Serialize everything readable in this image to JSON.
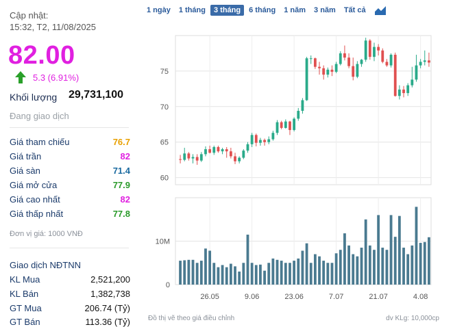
{
  "summary": {
    "updated_label": "Cập nhật:",
    "updated_time": "15:32, T2, 11/08/2025",
    "price": "82.00",
    "change": "5.3 (6.91%)",
    "volume_label": "Khối lượng",
    "volume_value": "29,731,100",
    "status": "Đang giao dịch"
  },
  "price_stats": [
    {
      "label": "Giá tham chiếu",
      "value": "76.7",
      "color": "#e8a000"
    },
    {
      "label": "Giá trần",
      "value": "82",
      "color": "#e020e0"
    },
    {
      "label": "Giá sàn",
      "value": "71.4",
      "color": "#1a6aa0"
    },
    {
      "label": "Giá mở cửa",
      "value": "77.9",
      "color": "#2a9a2a"
    },
    {
      "label": "Giá cao nhất",
      "value": "82",
      "color": "#e020e0"
    },
    {
      "label": "Giá thấp nhất",
      "value": "77.8",
      "color": "#2a9a2a"
    }
  ],
  "unit_note": "Đơn vị giá: 1000 VNĐ",
  "foreign": {
    "title": "Giao dịch NĐTNN",
    "rows": [
      {
        "label": "KL Mua",
        "value": "2,521,200"
      },
      {
        "label": "KL Bán",
        "value": "1,382,738"
      },
      {
        "label": "GT Mua",
        "value": "206.74 (Tỷ)"
      },
      {
        "label": "GT Bán",
        "value": "113.36 (Tỷ)"
      }
    ]
  },
  "tabs": [
    {
      "label": "1 ngày",
      "active": false
    },
    {
      "label": "1 tháng",
      "active": false
    },
    {
      "label": "3 tháng",
      "active": true
    },
    {
      "label": "6 tháng",
      "active": false
    },
    {
      "label": "1 năm",
      "active": false
    },
    {
      "label": "3 năm",
      "active": false
    },
    {
      "label": "Tất cả",
      "active": false
    }
  ],
  "footnotes": {
    "left": "Đồ thị vẽ theo giá điều chỉnh",
    "right": "dv KLg: 10,000cp"
  },
  "colors": {
    "up": "#2aaa8a",
    "down": "#e05050",
    "volume": "#4a7a90"
  },
  "chart_data": {
    "type": "candlestick",
    "price_axis": {
      "ticks": [
        60,
        65,
        70,
        75
      ],
      "range": [
        59,
        80
      ]
    },
    "volume_axis": {
      "tick_labels": [
        "0",
        "10M"
      ],
      "ticks": [
        0,
        10000000
      ],
      "range": [
        0,
        20000000
      ]
    },
    "x_tick_labels": [
      "26.05",
      "9.06",
      "23.06",
      "7.07",
      "21.07",
      "4.08"
    ],
    "x_tick_index": [
      7,
      17,
      27,
      37,
      47,
      57
    ],
    "candles": [
      {
        "o": 62.6,
        "h": 63.2,
        "l": 62.0,
        "c": 62.5,
        "v": 5.5
      },
      {
        "o": 62.5,
        "h": 64.2,
        "l": 62.3,
        "c": 63.4,
        "v": 5.6
      },
      {
        "o": 63.4,
        "h": 63.6,
        "l": 62.4,
        "c": 62.7,
        "v": 5.7
      },
      {
        "o": 62.7,
        "h": 63.3,
        "l": 62.0,
        "c": 62.9,
        "v": 5.7
      },
      {
        "o": 62.9,
        "h": 63.3,
        "l": 61.8,
        "c": 62.4,
        "v": 5.0
      },
      {
        "o": 62.4,
        "h": 63.6,
        "l": 62.2,
        "c": 63.3,
        "v": 5.5
      },
      {
        "o": 63.3,
        "h": 64.4,
        "l": 63.0,
        "c": 64.0,
        "v": 8.3
      },
      {
        "o": 64.0,
        "h": 64.5,
        "l": 63.4,
        "c": 63.5,
        "v": 7.8
      },
      {
        "o": 63.5,
        "h": 64.5,
        "l": 63.2,
        "c": 64.3,
        "v": 5.0
      },
      {
        "o": 64.3,
        "h": 64.5,
        "l": 63.5,
        "c": 63.7,
        "v": 4.0
      },
      {
        "o": 63.7,
        "h": 64.2,
        "l": 63.3,
        "c": 64.0,
        "v": 4.5
      },
      {
        "o": 64.0,
        "h": 64.3,
        "l": 62.8,
        "c": 63.7,
        "v": 4.0
      },
      {
        "o": 63.7,
        "h": 64.2,
        "l": 62.7,
        "c": 63.0,
        "v": 4.8
      },
      {
        "o": 63.0,
        "h": 63.5,
        "l": 61.9,
        "c": 62.3,
        "v": 4.2
      },
      {
        "o": 62.3,
        "h": 63.0,
        "l": 62.0,
        "c": 62.8,
        "v": 3.0
      },
      {
        "o": 62.8,
        "h": 64.0,
        "l": 62.6,
        "c": 63.8,
        "v": 5.0
      },
      {
        "o": 63.8,
        "h": 65.0,
        "l": 63.5,
        "c": 64.7,
        "v": 11.5
      },
      {
        "o": 64.7,
        "h": 66.3,
        "l": 64.3,
        "c": 66.0,
        "v": 5.0
      },
      {
        "o": 66.0,
        "h": 66.2,
        "l": 64.4,
        "c": 64.9,
        "v": 4.5
      },
      {
        "o": 64.9,
        "h": 65.6,
        "l": 64.5,
        "c": 65.3,
        "v": 4.6
      },
      {
        "o": 65.3,
        "h": 65.5,
        "l": 64.5,
        "c": 65.0,
        "v": 3.2
      },
      {
        "o": 65.0,
        "h": 65.8,
        "l": 64.7,
        "c": 65.4,
        "v": 5.0
      },
      {
        "o": 65.4,
        "h": 66.6,
        "l": 65.2,
        "c": 66.3,
        "v": 6.0
      },
      {
        "o": 66.3,
        "h": 68.1,
        "l": 66.0,
        "c": 67.8,
        "v": 5.7
      },
      {
        "o": 67.8,
        "h": 68.0,
        "l": 66.8,
        "c": 67.0,
        "v": 5.5
      },
      {
        "o": 67.0,
        "h": 68.2,
        "l": 66.9,
        "c": 67.9,
        "v": 5.0
      },
      {
        "o": 67.9,
        "h": 68.0,
        "l": 66.0,
        "c": 66.7,
        "v": 5.0
      },
      {
        "o": 66.7,
        "h": 68.5,
        "l": 66.5,
        "c": 68.3,
        "v": 5.5
      },
      {
        "o": 68.3,
        "h": 69.8,
        "l": 68.0,
        "c": 69.4,
        "v": 6.0
      },
      {
        "o": 69.4,
        "h": 71.2,
        "l": 69.0,
        "c": 70.9,
        "v": 7.8
      },
      {
        "o": 70.9,
        "h": 77.0,
        "l": 70.8,
        "c": 76.8,
        "v": 9.5
      },
      {
        "o": 76.8,
        "h": 77.2,
        "l": 76.0,
        "c": 76.8,
        "v": 5.0
      },
      {
        "o": 76.8,
        "h": 76.9,
        "l": 75.3,
        "c": 75.6,
        "v": 7.0
      },
      {
        "o": 75.6,
        "h": 76.3,
        "l": 74.5,
        "c": 75.4,
        "v": 6.5
      },
      {
        "o": 75.4,
        "h": 75.8,
        "l": 73.8,
        "c": 74.5,
        "v": 5.5
      },
      {
        "o": 74.5,
        "h": 75.5,
        "l": 74.1,
        "c": 75.2,
        "v": 5.0
      },
      {
        "o": 75.2,
        "h": 75.8,
        "l": 74.3,
        "c": 74.9,
        "v": 5.0
      },
      {
        "o": 74.9,
        "h": 76.3,
        "l": 74.7,
        "c": 76.0,
        "v": 7.2
      },
      {
        "o": 76.0,
        "h": 77.8,
        "l": 75.8,
        "c": 77.5,
        "v": 8.0
      },
      {
        "o": 77.5,
        "h": 78.6,
        "l": 76.5,
        "c": 76.9,
        "v": 11.8
      },
      {
        "o": 76.9,
        "h": 77.5,
        "l": 75.4,
        "c": 75.7,
        "v": 9.0
      },
      {
        "o": 75.7,
        "h": 76.9,
        "l": 73.7,
        "c": 74.2,
        "v": 7.0
      },
      {
        "o": 74.2,
        "h": 76.4,
        "l": 74.0,
        "c": 76.0,
        "v": 6.5
      },
      {
        "o": 76.0,
        "h": 76.7,
        "l": 75.6,
        "c": 76.6,
        "v": 8.5
      },
      {
        "o": 76.6,
        "h": 79.7,
        "l": 76.3,
        "c": 79.3,
        "v": 15.0
      },
      {
        "o": 79.3,
        "h": 79.5,
        "l": 76.6,
        "c": 77.0,
        "v": 9.0
      },
      {
        "o": 77.0,
        "h": 79.0,
        "l": 76.4,
        "c": 78.4,
        "v": 8.0
      },
      {
        "o": 78.4,
        "h": 78.8,
        "l": 77.2,
        "c": 77.9,
        "v": 16.0
      },
      {
        "o": 77.9,
        "h": 78.2,
        "l": 76.1,
        "c": 76.3,
        "v": 8.5
      },
      {
        "o": 76.3,
        "h": 76.7,
        "l": 75.6,
        "c": 75.8,
        "v": 8.0
      },
      {
        "o": 75.8,
        "h": 77.5,
        "l": 75.5,
        "c": 77.3,
        "v": 16.0
      },
      {
        "o": 77.3,
        "h": 77.6,
        "l": 71.4,
        "c": 71.5,
        "v": 11.0
      },
      {
        "o": 71.5,
        "h": 73.0,
        "l": 71.0,
        "c": 72.4,
        "v": 15.8
      },
      {
        "o": 72.4,
        "h": 72.9,
        "l": 71.3,
        "c": 71.9,
        "v": 8.5
      },
      {
        "o": 71.9,
        "h": 73.3,
        "l": 71.5,
        "c": 73.0,
        "v": 7.0
      },
      {
        "o": 73.0,
        "h": 75.6,
        "l": 72.7,
        "c": 73.8,
        "v": 9.0
      },
      {
        "o": 73.8,
        "h": 77.3,
        "l": 73.5,
        "c": 75.8,
        "v": 17.9
      },
      {
        "o": 75.8,
        "h": 76.7,
        "l": 75.4,
        "c": 76.3,
        "v": 9.6
      },
      {
        "o": 76.3,
        "h": 77.9,
        "l": 75.8,
        "c": 76.5,
        "v": 9.8
      },
      {
        "o": 76.5,
        "h": 77.6,
        "l": 75.6,
        "c": 76.2,
        "v": 10.9
      }
    ]
  }
}
